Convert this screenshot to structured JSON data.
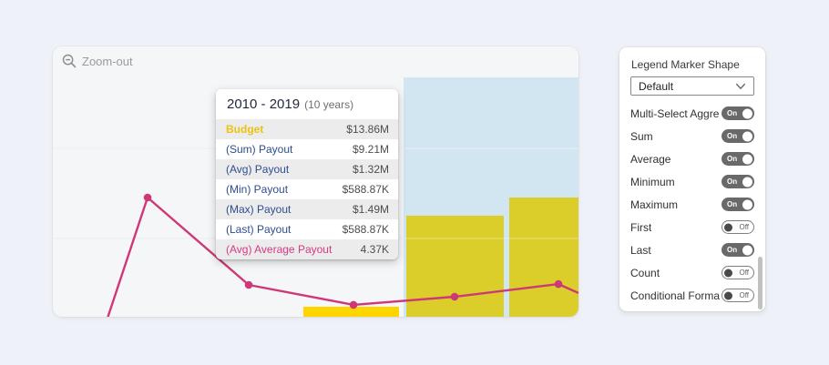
{
  "page": {
    "background_color": "#eef1f7"
  },
  "chart": {
    "zoom_out_label": "Zoom-out",
    "card_background": "#f5f6f8",
    "gridline_color": "#dfe2e7"
  },
  "chart_data": {
    "type": "combo",
    "hovered_period": "2010 - 2019",
    "hovered_period_note": "(10 years)",
    "series": [
      {
        "name": "Budget",
        "type": "bar",
        "color": "#ffd500",
        "color_in_selection": "#dbce2a"
      },
      {
        "name": "Average Payout",
        "type": "line",
        "color": "#cf3876"
      }
    ],
    "hover_values": {
      "Budget": "$13.86M",
      "(Sum) Payout": "$9.21M",
      "(Avg) Payout": "$1.32M",
      "(Min) Payout": "$588.87K",
      "(Max) Payout": "$1.49M",
      "(Last) Payout": "$588.87K",
      "(Avg) Average Payout": "4.37K"
    },
    "selection_region": {
      "color": "#d2e6f2",
      "left_pct": 66.72,
      "width_pct": 33.28,
      "top_pct": 11.45
    },
    "gridlines_y_pct": [
      37.7,
      71.0
    ],
    "bars_pct": [
      {
        "left": 47.66,
        "width": 18.2,
        "height": 3.7,
        "selected": false
      },
      {
        "left": 67.24,
        "width": 18.54,
        "height": 37.4,
        "selected": true
      },
      {
        "left": 86.83,
        "width": 13.17,
        "height": 44.1,
        "selected": true
      }
    ],
    "line_pct": [
      {
        "x": 10.4,
        "y": 100.5,
        "marker": false
      },
      {
        "x": 18.02,
        "y": 55.9,
        "marker": true
      },
      {
        "x": 37.26,
        "y": 88.2,
        "marker": true
      },
      {
        "x": 57.19,
        "y": 95.6,
        "marker": true
      },
      {
        "x": 76.43,
        "y": 92.6,
        "marker": true
      },
      {
        "x": 96.19,
        "y": 87.9,
        "marker": true
      },
      {
        "x": 100.0,
        "y": 91.2,
        "marker": false
      }
    ]
  },
  "tooltip": {
    "title": "2010 - 2019",
    "subtitle": "(10 years)",
    "rows": [
      {
        "label": "Budget",
        "value": "$13.86M",
        "color": "#edc211",
        "bold": true
      },
      {
        "label": "(Sum) Payout",
        "value": "$9.21M",
        "color": "#2e4d8f",
        "bold": false
      },
      {
        "label": "(Avg) Payout",
        "value": "$1.32M",
        "color": "#2e4d8f",
        "bold": false
      },
      {
        "label": "(Min) Payout",
        "value": "$588.87K",
        "color": "#2e4d8f",
        "bold": false
      },
      {
        "label": "(Max) Payout",
        "value": "$1.49M",
        "color": "#2e4d8f",
        "bold": false
      },
      {
        "label": "(Last) Payout",
        "value": "$588.87K",
        "color": "#2e4d8f",
        "bold": false
      },
      {
        "label": "(Avg) Average Payout",
        "value": "4.37K",
        "color": "#d53984",
        "bold": false
      }
    ]
  },
  "panel": {
    "label": "Legend Marker Shape",
    "dropdown_value": "Default",
    "toggles": [
      {
        "label": "Multi-Select Aggre...",
        "state": "On"
      },
      {
        "label": "Sum",
        "state": "On"
      },
      {
        "label": "Average",
        "state": "On"
      },
      {
        "label": "Minimum",
        "state": "On"
      },
      {
        "label": "Maximum",
        "state": "On"
      },
      {
        "label": "First",
        "state": "Off"
      },
      {
        "label": "Last",
        "state": "On"
      },
      {
        "label": "Count",
        "state": "Off"
      },
      {
        "label": "Conditional Format...",
        "state": "Off"
      }
    ]
  }
}
